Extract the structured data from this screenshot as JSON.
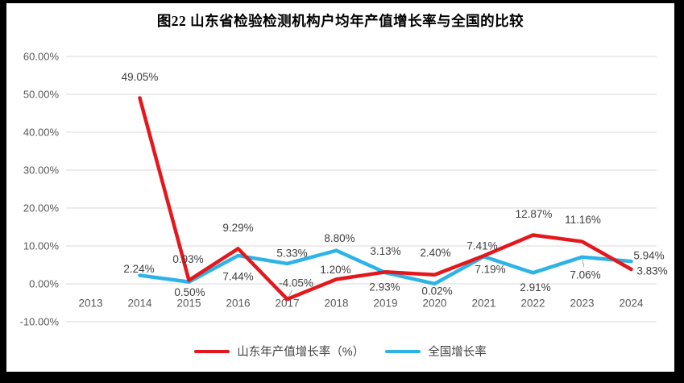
{
  "title": "图22 山东省检验检测机构户均年产值增长率与全国的比较",
  "chart_data": {
    "type": "line",
    "title": "图22 山东省检验检测机构户均年产值增长率与全国的比较",
    "categories": [
      "2013",
      "2014",
      "2015",
      "2016",
      "2017",
      "2018",
      "2019",
      "2020",
      "2021",
      "2022",
      "2023",
      "2024"
    ],
    "yticks": [
      "60.00%",
      "50.00%",
      "40.00%",
      "30.00%",
      "20.00%",
      "10.00%",
      "0.00%",
      "-10.00%"
    ],
    "ylim": [
      -10,
      60
    ],
    "ytick_step": 10,
    "grid": true,
    "legend_position": "bottom",
    "series": [
      {
        "name": "山东年产值增长率（%）",
        "color": "#e4181c",
        "values": [
          null,
          49.05,
          0.93,
          9.29,
          -4.05,
          1.2,
          3.13,
          2.4,
          7.41,
          12.87,
          11.16,
          3.83
        ],
        "label_offsets": [
          null,
          [
            0,
            -26
          ],
          [
            -1,
            -26
          ],
          [
            0,
            -26
          ],
          [
            11,
            -20
          ],
          [
            -1,
            -12
          ],
          [
            0,
            -26
          ],
          [
            1,
            -27
          ],
          [
            -2,
            -12
          ],
          [
            1,
            -26
          ],
          [
            1,
            -27
          ],
          [
            26,
            2
          ]
        ]
      },
      {
        "name": "全国增长率",
        "color": "#2eb3e6",
        "values": [
          null,
          2.24,
          0.5,
          7.44,
          5.33,
          8.8,
          2.93,
          0.02,
          7.19,
          2.91,
          7.06,
          5.94
        ],
        "label_offsets": [
          null,
          [
            -1,
            -8
          ],
          [
            1,
            13
          ],
          [
            0,
            26
          ],
          [
            6,
            -13
          ],
          [
            4,
            -15
          ],
          [
            -1,
            18
          ],
          [
            3,
            9
          ],
          [
            8,
            16
          ],
          [
            3,
            18
          ],
          [
            4,
            22
          ],
          [
            22,
            -7
          ]
        ]
      }
    ],
    "leader_lines": [
      {
        "series": 0,
        "index": 4
      },
      {
        "series": 1,
        "index": 10
      }
    ],
    "colors": {
      "grid": "#d9d9d9",
      "axis_text": "#595959",
      "label_text": "#404040",
      "leader": "#a6a6a6"
    }
  }
}
